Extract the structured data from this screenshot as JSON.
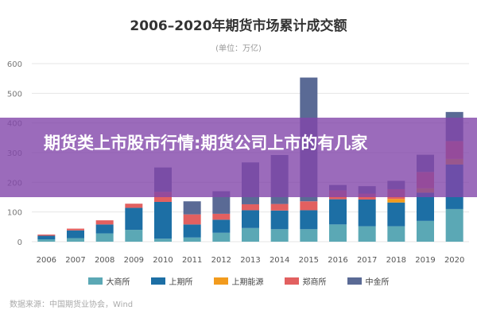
{
  "banner": {
    "text": "期货类上市股市行情:期货公司上市的有几家"
  },
  "chart_data": {
    "type": "bar",
    "stacked": true,
    "title": "2006–2020年期货市场累计成交额",
    "subtitle": "(单位：万亿)",
    "source": "数据来源：中国期货业协会，Wind",
    "categories": [
      "2006",
      "2007",
      "2008",
      "2009",
      "2010",
      "2011",
      "2012",
      "2013",
      "2014",
      "2015",
      "2016",
      "2017",
      "2018",
      "2019",
      "2020"
    ],
    "ylim": [
      0,
      600
    ],
    "yticks": [
      0,
      100,
      200,
      300,
      400,
      500,
      600
    ],
    "grid": true,
    "legend_position": "bottom",
    "colors": {
      "大商所": "#5ba8b5",
      "上期所": "#1d6fa5",
      "上期能源": "#f29b1d",
      "郑商所": "#e26060",
      "中金所": "#5a6a95"
    },
    "series": [
      {
        "name": "大商所",
        "values": [
          8,
          12,
          28,
          40,
          10,
          14,
          30,
          46,
          42,
          42,
          58,
          52,
          52,
          70,
          110
        ]
      },
      {
        "name": "上期所",
        "values": [
          12,
          26,
          30,
          74,
          124,
          44,
          44,
          60,
          63,
          64,
          85,
          90,
          80,
          95,
          150
        ]
      },
      {
        "name": "上期能源",
        "values": [
          0,
          0,
          0,
          0,
          0,
          0,
          0,
          0,
          0,
          0,
          0,
          0,
          12,
          15,
          19
        ]
      },
      {
        "name": "郑商所",
        "values": [
          4,
          6,
          14,
          14,
          34,
          34,
          20,
          20,
          22,
          30,
          30,
          20,
          33,
          55,
          60
        ]
      },
      {
        "name": "中金所",
        "values": [
          0,
          0,
          0,
          0,
          82,
          44,
          76,
          141,
          165,
          417,
          18,
          25,
          28,
          58,
          98
        ]
      }
    ]
  }
}
